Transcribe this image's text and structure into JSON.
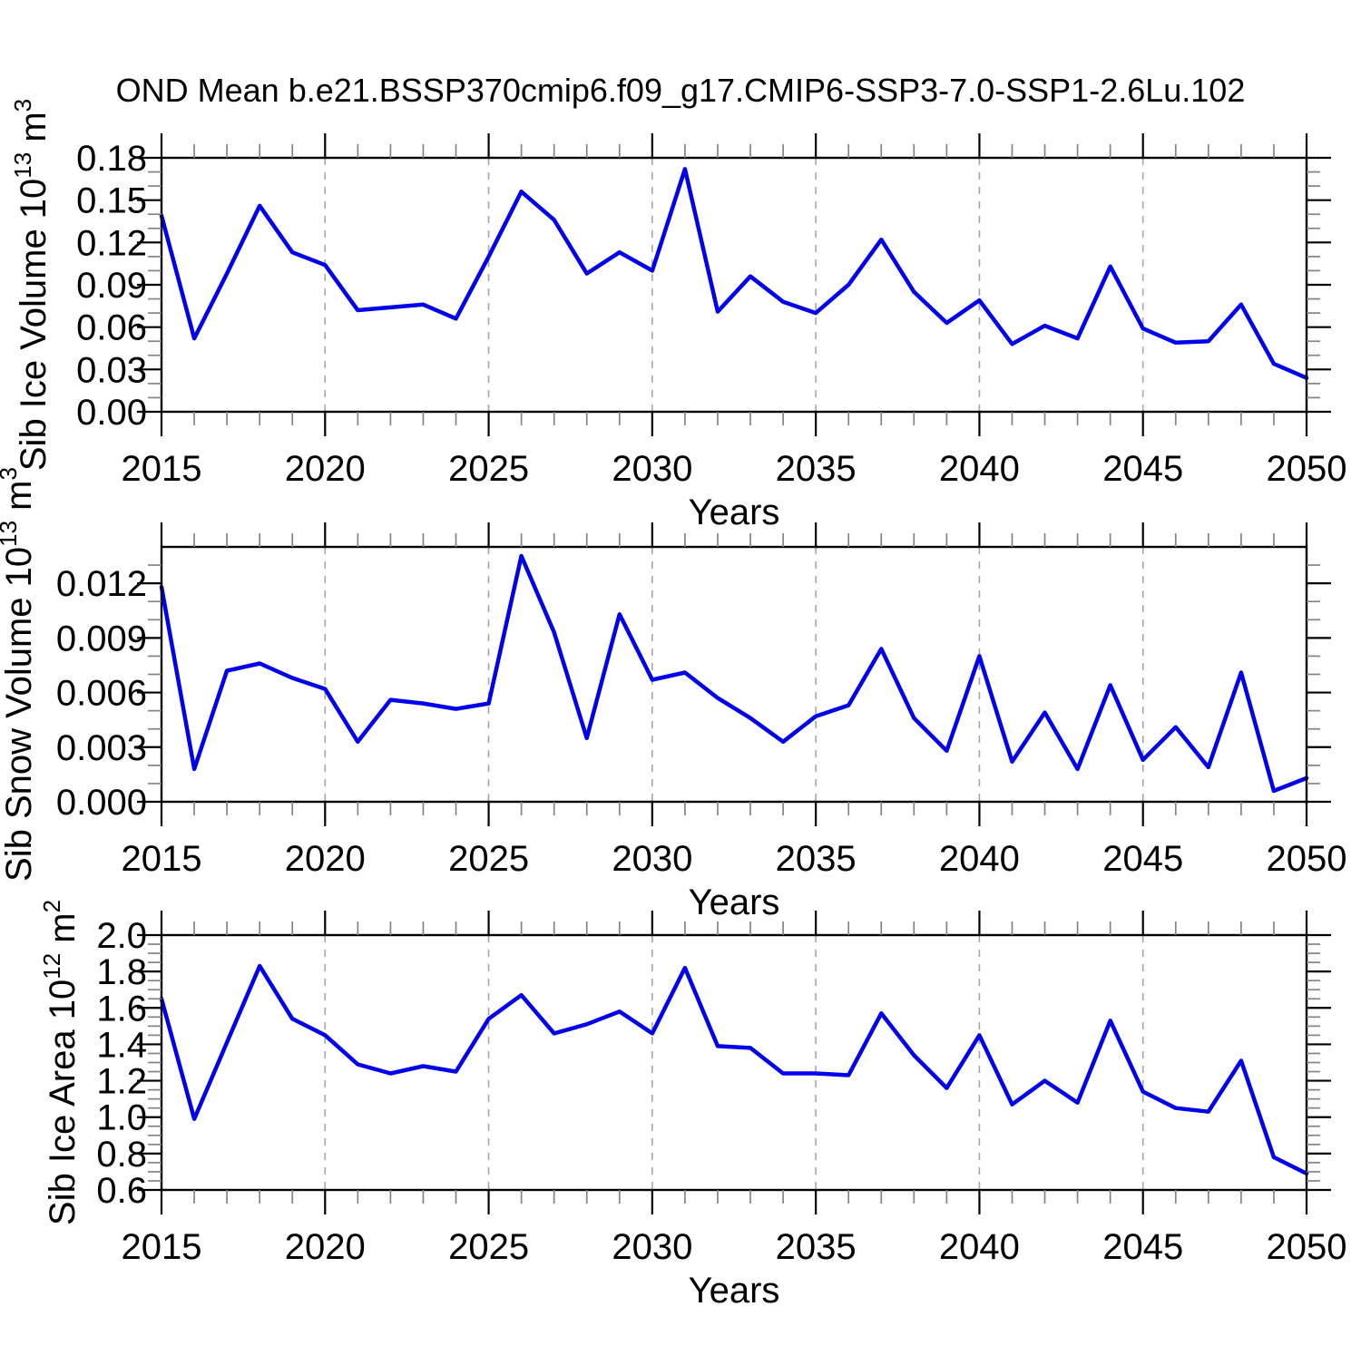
{
  "chart_data": {
    "type": "line",
    "title": "OND Mean b.e21.BSSP370cmip6.f09_g17.CMIP6-SSP3-7.0-SSP1-2.6Lu.102",
    "xlabel": "Years",
    "line_color": "#0000EE",
    "grid_on": true,
    "grid_years": [
      2020,
      2025,
      2030,
      2035,
      2040,
      2045
    ],
    "xlim": [
      2015,
      2050
    ],
    "x": [
      2015,
      2016,
      2017,
      2018,
      2019,
      2020,
      2021,
      2022,
      2023,
      2024,
      2025,
      2026,
      2027,
      2028,
      2029,
      2030,
      2031,
      2032,
      2033,
      2034,
      2035,
      2036,
      2037,
      2038,
      2039,
      2040,
      2041,
      2042,
      2043,
      2044,
      2045,
      2046,
      2047,
      2048,
      2049,
      2050
    ],
    "x_major_ticks": [
      2015,
      2020,
      2025,
      2030,
      2035,
      2040,
      2045,
      2050
    ],
    "x_tick_labels": [
      "2015",
      "2020",
      "2025",
      "2030",
      "2035",
      "2040",
      "2045",
      "2050"
    ],
    "panels": [
      {
        "name": "sib-ice-volume",
        "ylabel_text": "Sib Ice Volume 10^13 m^3",
        "ylabel_segments": [
          {
            "t": "Sib Ice Volume 10"
          },
          {
            "t": "13",
            "sup": true
          },
          {
            "t": " m"
          },
          {
            "t": "3",
            "sup": true
          }
        ],
        "ylim": [
          0,
          0.18
        ],
        "y_major": [
          0.0,
          0.03,
          0.06,
          0.09,
          0.12,
          0.15,
          0.18
        ],
        "y_major_labels": [
          "0.00",
          "0.03",
          "0.06",
          "0.09",
          "0.12",
          "0.15",
          "0.18"
        ],
        "y_minor_step": 0.01,
        "values": [
          0.139,
          0.052,
          0.098,
          0.146,
          0.113,
          0.104,
          0.072,
          0.074,
          0.076,
          0.066,
          0.11,
          0.156,
          0.136,
          0.098,
          0.113,
          0.1,
          0.172,
          0.071,
          0.096,
          0.078,
          0.07,
          0.09,
          0.122,
          0.085,
          0.063,
          0.079,
          0.048,
          0.061,
          0.052,
          0.103,
          0.059,
          0.049,
          0.05,
          0.076,
          0.034,
          0.024
        ]
      },
      {
        "name": "sib-snow-volume",
        "ylabel_text": "Sib Snow Volume 10^13 m^3",
        "ylabel_segments": [
          {
            "t": "Sib Snow Volume 10"
          },
          {
            "t": "13",
            "sup": true
          },
          {
            "t": " m"
          },
          {
            "t": "3",
            "sup": true
          }
        ],
        "ylim": [
          0,
          0.014
        ],
        "y_major": [
          0.0,
          0.003,
          0.006,
          0.009,
          0.012
        ],
        "y_major_labels": [
          "0.000",
          "0.003",
          "0.006",
          "0.009",
          "0.012"
        ],
        "y_minor_step": 0.001,
        "values": [
          0.0118,
          0.0018,
          0.0072,
          0.0076,
          0.0068,
          0.0062,
          0.0033,
          0.0056,
          0.0054,
          0.0051,
          0.0054,
          0.0135,
          0.0093,
          0.0035,
          0.0103,
          0.0067,
          0.0071,
          0.0057,
          0.0046,
          0.0033,
          0.0047,
          0.0053,
          0.0084,
          0.0046,
          0.0028,
          0.008,
          0.0022,
          0.0049,
          0.0018,
          0.0064,
          0.0023,
          0.0041,
          0.0019,
          0.0071,
          0.0006,
          0.0013
        ]
      },
      {
        "name": "sib-ice-area",
        "ylabel_text": "Sib Ice Area 10^12 m^2",
        "ylabel_segments": [
          {
            "t": "Sib Ice Area 10"
          },
          {
            "t": "12",
            "sup": true
          },
          {
            "t": " m"
          },
          {
            "t": "2",
            "sup": true
          }
        ],
        "ylim": [
          0.6,
          2.0
        ],
        "y_major": [
          0.6,
          0.8,
          1.0,
          1.2,
          1.4,
          1.6,
          1.8,
          2.0
        ],
        "y_major_labels": [
          "0.6",
          "0.8",
          "1.0",
          "1.2",
          "1.4",
          "1.6",
          "1.8",
          "2.0"
        ],
        "y_minor_step": 0.05,
        "values": [
          1.65,
          0.99,
          1.41,
          1.83,
          1.54,
          1.45,
          1.29,
          1.24,
          1.28,
          1.25,
          1.54,
          1.67,
          1.46,
          1.51,
          1.58,
          1.46,
          1.82,
          1.39,
          1.38,
          1.24,
          1.24,
          1.23,
          1.57,
          1.34,
          1.16,
          1.45,
          1.07,
          1.2,
          1.08,
          1.53,
          1.14,
          1.05,
          1.03,
          1.31,
          0.78,
          0.69
        ]
      }
    ]
  }
}
